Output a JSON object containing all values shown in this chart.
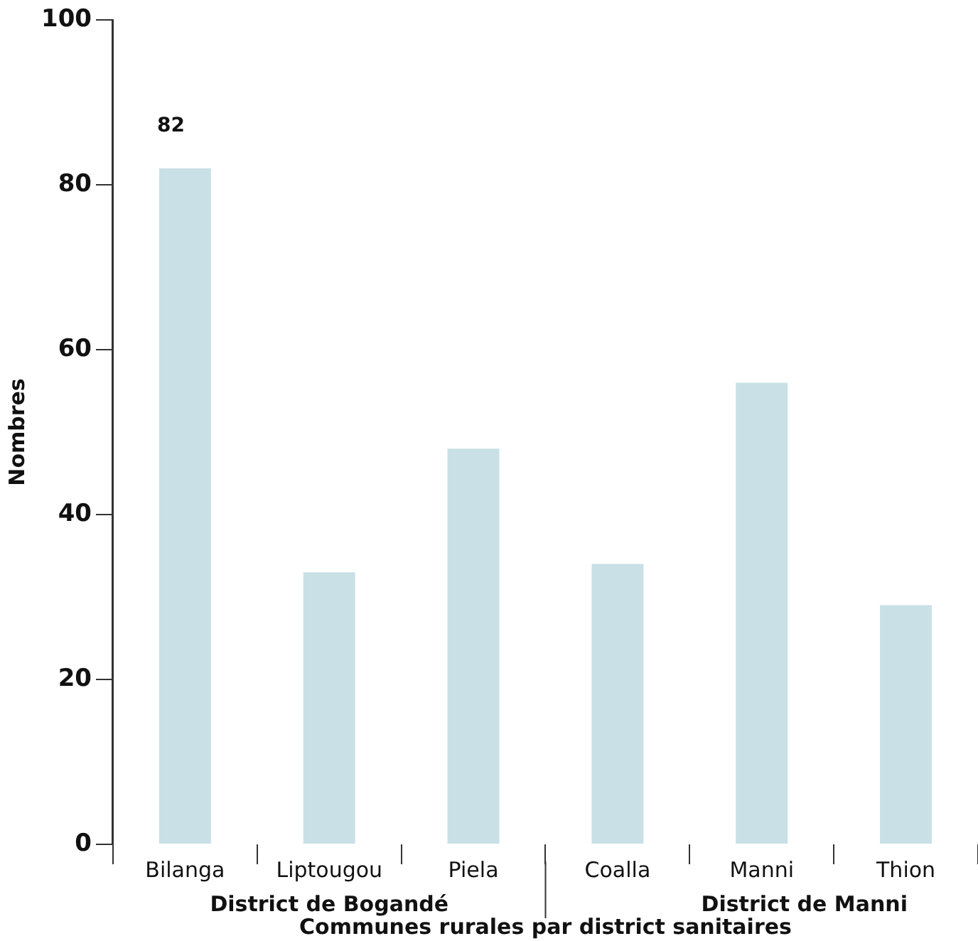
{
  "chart_data": {
    "type": "bar",
    "ylabel": "Nombres",
    "xlabel": "Communes rurales par district sanitaires",
    "categories": [
      "Bilanga",
      "Liptougou",
      "Piela",
      "Coalla",
      "Manni",
      "Thion"
    ],
    "values": [
      82,
      33,
      48,
      34,
      56,
      29
    ],
    "value_labels": [
      "82",
      null,
      null,
      null,
      null,
      null
    ],
    "color": "#c9e0e6",
    "ylim": [
      0,
      100
    ],
    "yticks": [
      0,
      20,
      40,
      60,
      80,
      100
    ],
    "grid": false,
    "legend": false,
    "annotations": [
      "District de Bogandé",
      "District de Manni"
    ]
  }
}
